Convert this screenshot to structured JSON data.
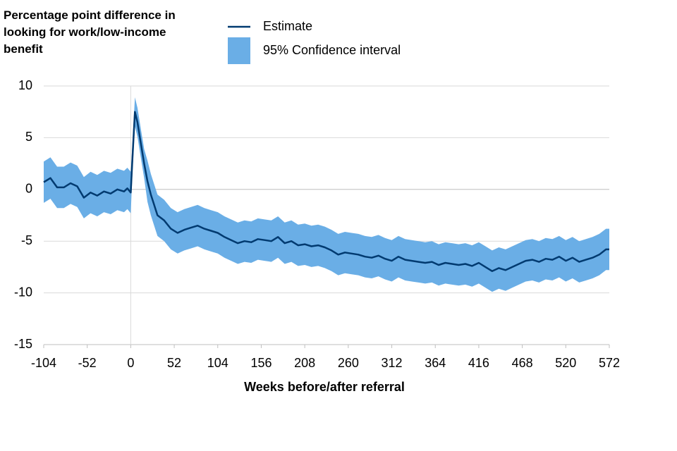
{
  "chart_data": {
    "type": "line",
    "ylabel": "Percentage point difference in looking for work/low-income benefit",
    "xlabel": "Weeks before/after referral",
    "x": [
      -104,
      -96,
      -88,
      -80,
      -72,
      -64,
      -56,
      -48,
      -40,
      -32,
      -24,
      -16,
      -8,
      -4,
      0,
      2,
      5,
      8,
      12,
      16,
      20,
      24,
      28,
      32,
      40,
      48,
      56,
      64,
      72,
      80,
      88,
      96,
      104,
      112,
      120,
      128,
      136,
      144,
      152,
      160,
      168,
      176,
      184,
      192,
      200,
      208,
      216,
      224,
      232,
      240,
      248,
      256,
      264,
      272,
      280,
      288,
      296,
      304,
      312,
      320,
      328,
      336,
      344,
      352,
      360,
      368,
      376,
      384,
      392,
      400,
      408,
      416,
      424,
      432,
      440,
      448,
      456,
      464,
      472,
      480,
      488,
      496,
      504,
      512,
      520,
      528,
      536,
      544,
      552,
      560,
      568,
      572
    ],
    "series": [
      {
        "name": "Estimate",
        "color": "#003a70",
        "values": [
          0.7,
          1.1,
          0.2,
          0.2,
          0.6,
          0.3,
          -0.8,
          -0.3,
          -0.6,
          -0.2,
          -0.4,
          0.0,
          -0.2,
          0.1,
          -0.3,
          3.0,
          7.5,
          6.5,
          4.5,
          2.5,
          0.8,
          -0.5,
          -1.5,
          -2.5,
          -3.0,
          -3.8,
          -4.2,
          -3.9,
          -3.7,
          -3.5,
          -3.8,
          -4.0,
          -4.2,
          -4.6,
          -4.9,
          -5.2,
          -5.0,
          -5.1,
          -4.8,
          -4.9,
          -5.0,
          -4.6,
          -5.2,
          -5.0,
          -5.4,
          -5.3,
          -5.5,
          -5.4,
          -5.6,
          -5.9,
          -6.3,
          -6.1,
          -6.2,
          -6.3,
          -6.5,
          -6.6,
          -6.4,
          -6.7,
          -6.9,
          -6.5,
          -6.8,
          -6.9,
          -7.0,
          -7.1,
          -7.0,
          -7.3,
          -7.1,
          -7.2,
          -7.3,
          -7.2,
          -7.4,
          -7.1,
          -7.5,
          -7.9,
          -7.6,
          -7.8,
          -7.5,
          -7.2,
          -6.9,
          -6.8,
          -7.0,
          -6.7,
          -6.8,
          -6.5,
          -6.9,
          -6.6,
          -7.0,
          -6.8,
          -6.6,
          -6.3,
          -5.8,
          -5.8
        ]
      }
    ],
    "interval": {
      "name": "95% Confidence interval",
      "color": "#6aaee6",
      "lower": [
        -1.3,
        -0.9,
        -1.8,
        -1.8,
        -1.4,
        -1.7,
        -2.8,
        -2.3,
        -2.6,
        -2.2,
        -2.4,
        -2.0,
        -2.2,
        -1.9,
        -2.3,
        1.6,
        6.1,
        5.1,
        3.1,
        1.1,
        -1.2,
        -2.5,
        -3.5,
        -4.5,
        -5.0,
        -5.8,
        -6.2,
        -5.9,
        -5.7,
        -5.5,
        -5.8,
        -6.0,
        -6.2,
        -6.6,
        -6.9,
        -7.2,
        -7.0,
        -7.1,
        -6.8,
        -6.9,
        -7.0,
        -6.6,
        -7.2,
        -7.0,
        -7.4,
        -7.3,
        -7.5,
        -7.4,
        -7.6,
        -7.9,
        -8.3,
        -8.1,
        -8.2,
        -8.3,
        -8.5,
        -8.6,
        -8.4,
        -8.7,
        -8.9,
        -8.5,
        -8.8,
        -8.9,
        -9.0,
        -9.1,
        -9.0,
        -9.3,
        -9.1,
        -9.2,
        -9.3,
        -9.2,
        -9.4,
        -9.1,
        -9.5,
        -9.9,
        -9.6,
        -9.8,
        -9.5,
        -9.2,
        -8.9,
        -8.8,
        -9.0,
        -8.7,
        -8.8,
        -8.5,
        -8.9,
        -8.6,
        -9.0,
        -8.8,
        -8.6,
        -8.3,
        -7.8,
        -7.8
      ],
      "upper": [
        2.7,
        3.1,
        2.2,
        2.2,
        2.6,
        2.3,
        1.2,
        1.7,
        1.4,
        1.8,
        1.6,
        2.0,
        1.8,
        2.1,
        1.7,
        4.4,
        8.9,
        7.9,
        5.9,
        3.9,
        2.8,
        1.5,
        0.5,
        -0.5,
        -1.0,
        -1.8,
        -2.2,
        -1.9,
        -1.7,
        -1.5,
        -1.8,
        -2.0,
        -2.2,
        -2.6,
        -2.9,
        -3.2,
        -3.0,
        -3.1,
        -2.8,
        -2.9,
        -3.0,
        -2.6,
        -3.2,
        -3.0,
        -3.4,
        -3.3,
        -3.5,
        -3.4,
        -3.6,
        -3.9,
        -4.3,
        -4.1,
        -4.2,
        -4.3,
        -4.5,
        -4.6,
        -4.4,
        -4.7,
        -4.9,
        -4.5,
        -4.8,
        -4.9,
        -5.0,
        -5.1,
        -5.0,
        -5.3,
        -5.1,
        -5.2,
        -5.3,
        -5.2,
        -5.4,
        -5.1,
        -5.5,
        -5.9,
        -5.6,
        -5.8,
        -5.5,
        -5.2,
        -4.9,
        -4.8,
        -5.0,
        -4.7,
        -4.8,
        -4.5,
        -4.9,
        -4.6,
        -5.0,
        -4.8,
        -4.6,
        -4.3,
        -3.8,
        -3.8
      ]
    },
    "xlim": [
      -104,
      572
    ],
    "xticks": [
      -104,
      -52,
      0,
      52,
      104,
      156,
      208,
      260,
      312,
      364,
      416,
      468,
      520,
      572
    ],
    "ylim": [
      -15,
      10
    ],
    "yticks": [
      -15,
      -10,
      -5,
      0,
      5,
      10
    ],
    "grid": true
  }
}
